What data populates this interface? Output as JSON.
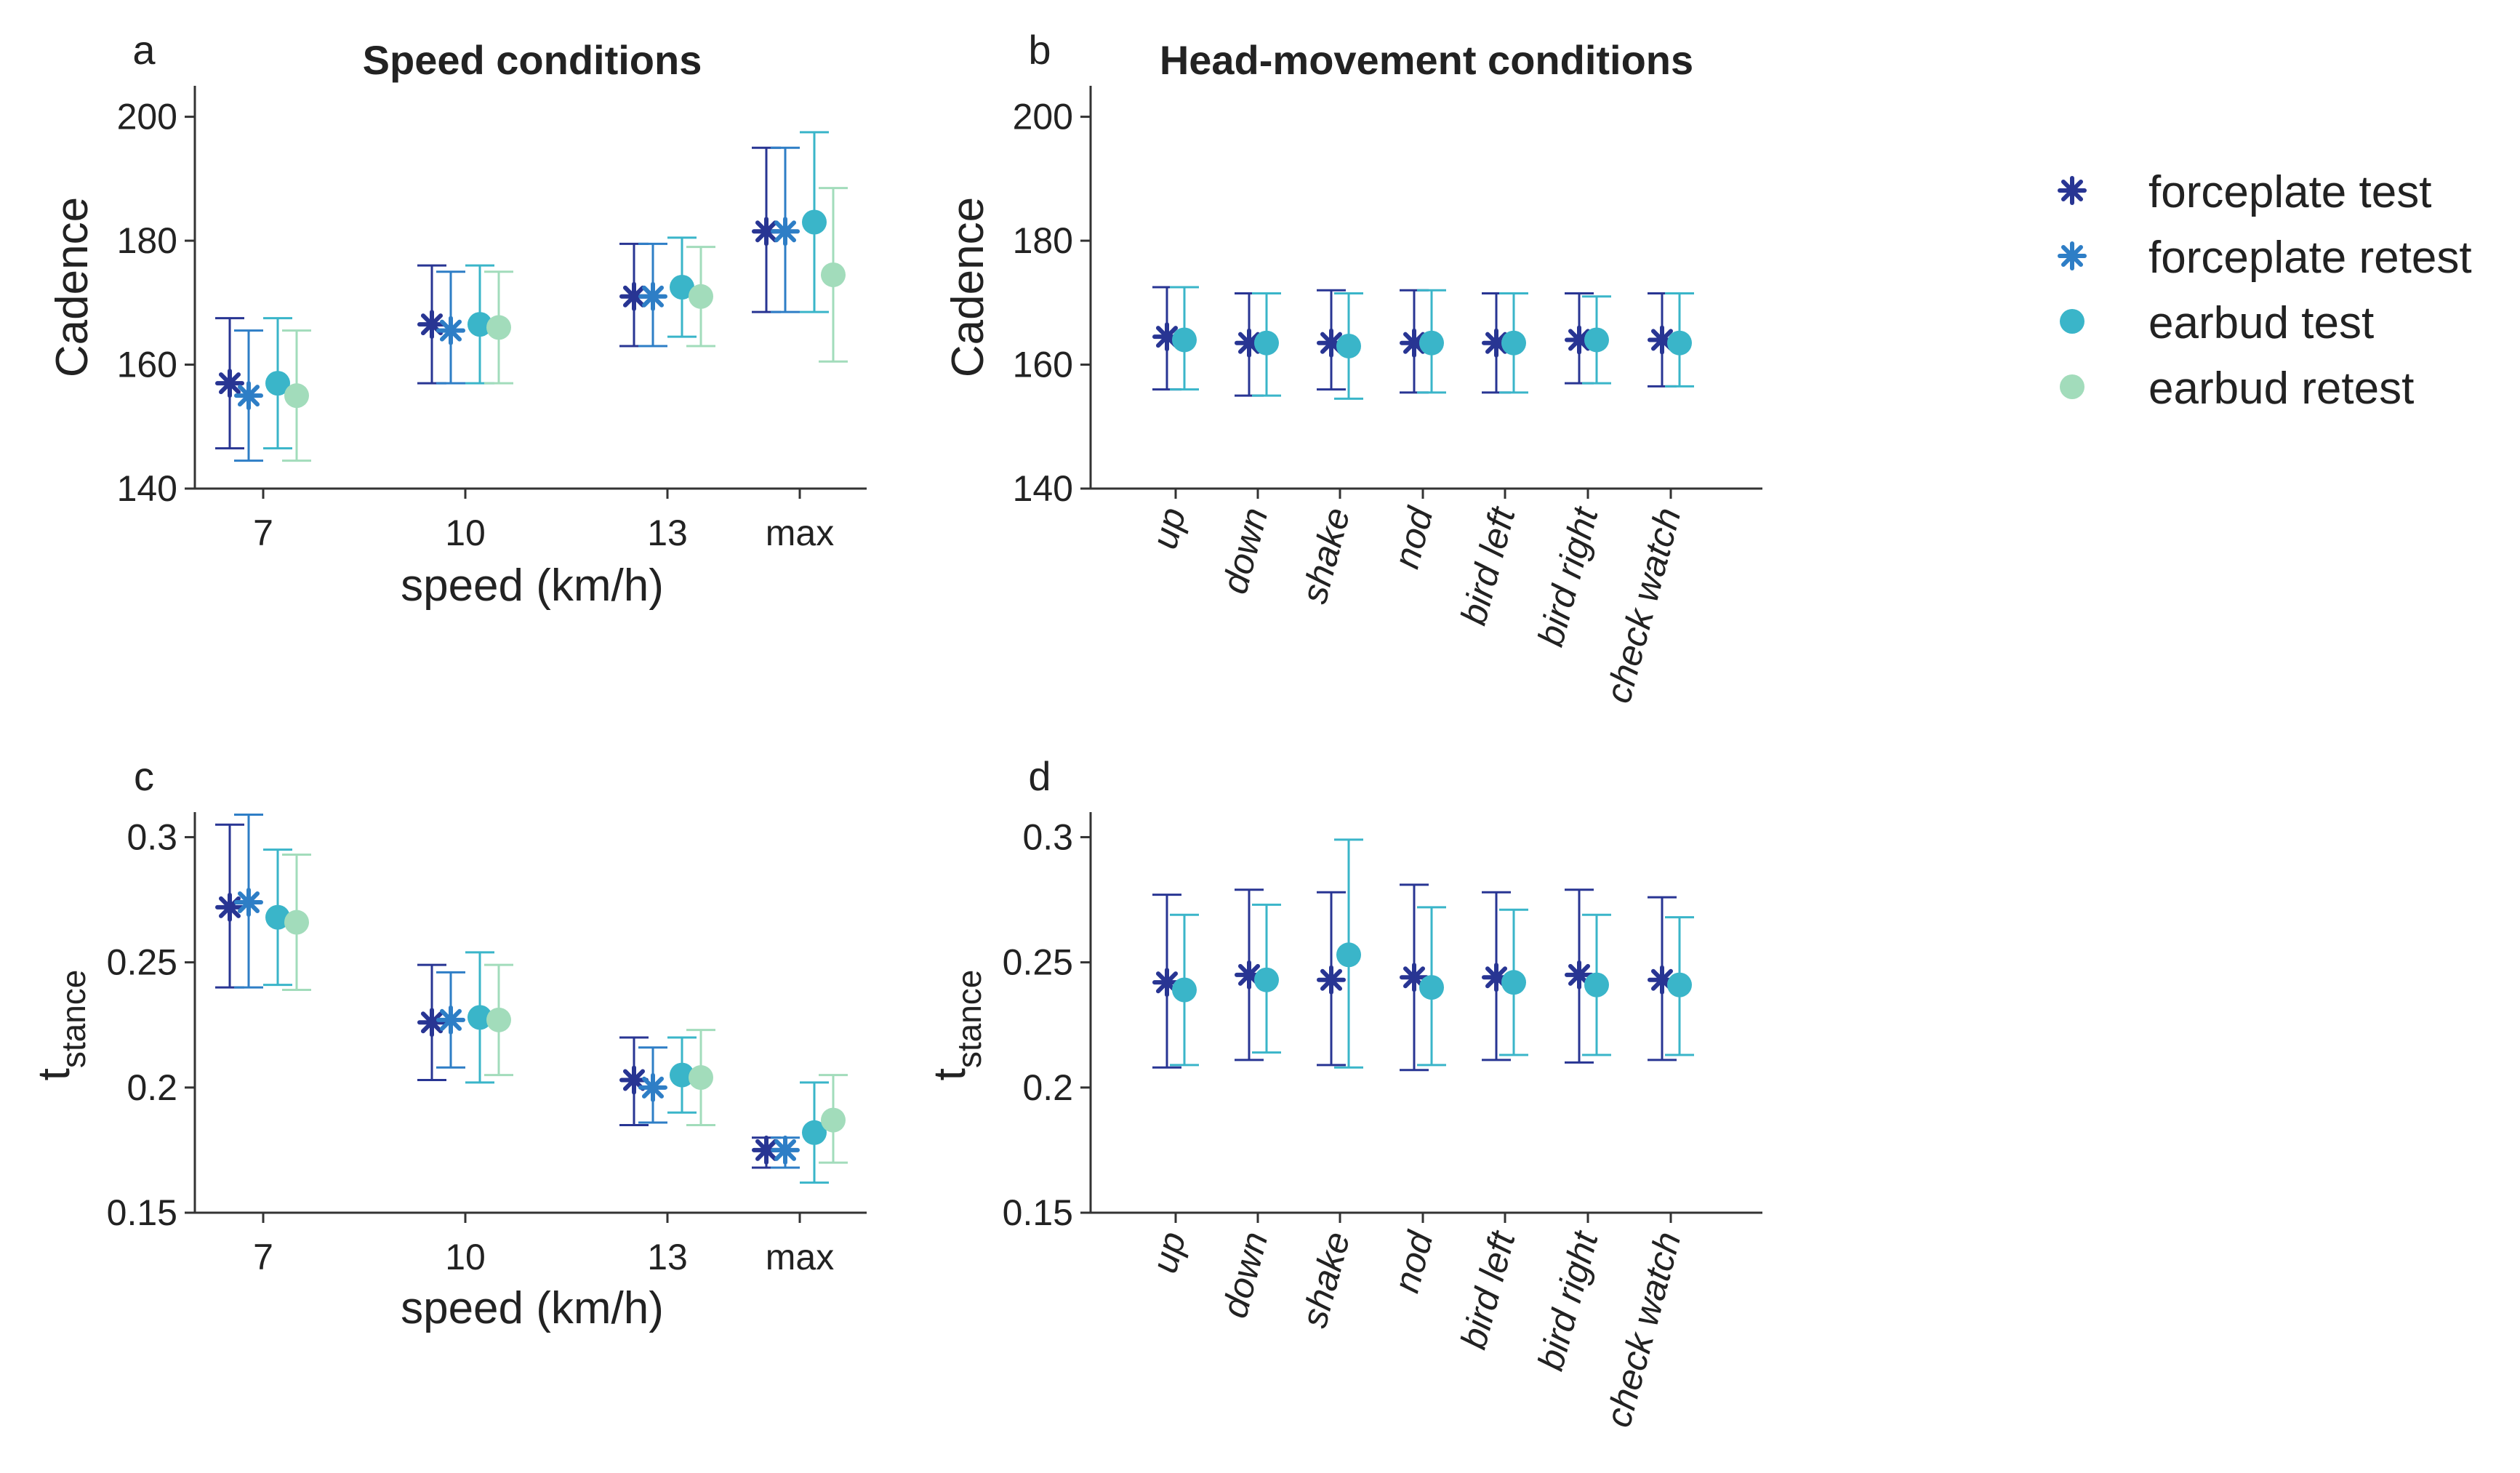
{
  "colors": {
    "forceplate_test": "#283593",
    "forceplate_retest": "#2e7ec6",
    "earbud_test": "#3ab5c9",
    "earbud_retest": "#a2dcbb",
    "axis": "#333333",
    "text": "#222222"
  },
  "legend": {
    "entries": [
      {
        "label": "forceplate test",
        "marker": "asterisk",
        "color_key": "forceplate_test"
      },
      {
        "label": "forceplate retest",
        "marker": "asterisk",
        "color_key": "forceplate_retest"
      },
      {
        "label": "earbud test",
        "marker": "circle",
        "color_key": "earbud_test"
      },
      {
        "label": "earbud retest",
        "marker": "circle",
        "color_key": "earbud_retest"
      }
    ]
  },
  "chart_data": [
    {
      "panel": "a",
      "type": "scatter",
      "title": "Speed conditions",
      "xlabel": "speed (km/h)",
      "ylabel": "Cadence",
      "categories": [
        "7",
        "10",
        "13",
        "max"
      ],
      "ylim": [
        140,
        205
      ],
      "yticks": [
        140,
        160,
        180,
        200
      ],
      "ytick_labels": [
        "140",
        "160",
        "180",
        "200"
      ],
      "series": [
        {
          "name": "forceplate test",
          "values": [
            157,
            166.5,
            171,
            181.5
          ],
          "lower": [
            146.5,
            157,
            163,
            168.5
          ],
          "upper": [
            167.5,
            176,
            179.5,
            195
          ]
        },
        {
          "name": "forceplate retest",
          "values": [
            155,
            165.5,
            171,
            181.5
          ],
          "lower": [
            144.5,
            157,
            163,
            168.5
          ],
          "upper": [
            165.5,
            175,
            179.5,
            195
          ]
        },
        {
          "name": "earbud test",
          "values": [
            157,
            166.5,
            172.5,
            183
          ],
          "lower": [
            146.5,
            157,
            164.5,
            168.5
          ],
          "upper": [
            167.5,
            176,
            180.5,
            197.5
          ]
        },
        {
          "name": "earbud retest",
          "values": [
            155,
            166,
            171,
            174.5
          ],
          "lower": [
            144.5,
            157,
            163,
            160.5
          ],
          "upper": [
            165.5,
            175,
            179,
            188.5
          ]
        }
      ]
    },
    {
      "panel": "b",
      "type": "scatter",
      "title": "Head-movement conditions",
      "xlabel": "",
      "ylabel": "Cadence",
      "categories": [
        "up",
        "down",
        "shake",
        "nod",
        "bird left",
        "bird right",
        "check watch"
      ],
      "ylim": [
        140,
        205
      ],
      "yticks": [
        140,
        160,
        180,
        200
      ],
      "ytick_labels": [
        "140",
        "160",
        "180",
        "200"
      ],
      "series": [
        {
          "name": "forceplate test",
          "values": [
            164.5,
            163.5,
            163.5,
            163.5,
            163.5,
            164,
            164
          ],
          "lower": [
            156,
            155,
            156,
            155.5,
            155.5,
            157,
            156.5
          ],
          "upper": [
            172.5,
            171.5,
            172,
            172,
            171.5,
            171.5,
            171.5
          ]
        },
        {
          "name": "earbud test",
          "values": [
            164,
            163.5,
            163,
            163.5,
            163.5,
            164,
            163.5
          ],
          "lower": [
            156,
            155,
            154.5,
            155.5,
            155.5,
            157,
            156.5
          ],
          "upper": [
            172.5,
            171.5,
            171.5,
            172,
            171.5,
            171,
            171.5
          ]
        }
      ]
    },
    {
      "panel": "c",
      "type": "scatter",
      "title": "",
      "xlabel": "speed (km/h)",
      "ylabel_main": "t",
      "ylabel_sub": "stance",
      "categories": [
        "7",
        "10",
        "13",
        "max"
      ],
      "ylim": [
        0.15,
        0.31
      ],
      "yticks": [
        0.15,
        0.2,
        0.25,
        0.3
      ],
      "ytick_labels": [
        "0.15",
        "0.2",
        "0.25",
        "0.3"
      ],
      "series": [
        {
          "name": "forceplate test",
          "values": [
            0.272,
            0.226,
            0.203,
            0.175
          ],
          "lower": [
            0.24,
            0.203,
            0.185,
            0.168
          ],
          "upper": [
            0.305,
            0.249,
            0.22,
            0.18
          ]
        },
        {
          "name": "forceplate retest",
          "values": [
            0.274,
            0.227,
            0.2,
            0.175
          ],
          "lower": [
            0.24,
            0.208,
            0.186,
            0.168
          ],
          "upper": [
            0.309,
            0.246,
            0.216,
            0.18
          ]
        },
        {
          "name": "earbud test",
          "values": [
            0.268,
            0.228,
            0.205,
            0.182
          ],
          "lower": [
            0.241,
            0.202,
            0.19,
            0.162
          ],
          "upper": [
            0.295,
            0.254,
            0.22,
            0.202
          ]
        },
        {
          "name": "earbud retest",
          "values": [
            0.266,
            0.227,
            0.204,
            0.187
          ],
          "lower": [
            0.239,
            0.205,
            0.185,
            0.17
          ],
          "upper": [
            0.293,
            0.249,
            0.223,
            0.205
          ]
        }
      ]
    },
    {
      "panel": "d",
      "type": "scatter",
      "title": "",
      "xlabel": "",
      "ylabel_main": "t",
      "ylabel_sub": "stance",
      "categories": [
        "up",
        "down",
        "shake",
        "nod",
        "bird left",
        "bird right",
        "check watch"
      ],
      "ylim": [
        0.15,
        0.31
      ],
      "yticks": [
        0.15,
        0.2,
        0.25,
        0.3
      ],
      "ytick_labels": [
        "0.15",
        "0.2",
        "0.25",
        "0.3"
      ],
      "series": [
        {
          "name": "forceplate test",
          "values": [
            0.242,
            0.245,
            0.243,
            0.244,
            0.244,
            0.245,
            0.243
          ],
          "lower": [
            0.208,
            0.211,
            0.209,
            0.207,
            0.211,
            0.21,
            0.211
          ],
          "upper": [
            0.277,
            0.279,
            0.278,
            0.281,
            0.278,
            0.279,
            0.276
          ]
        },
        {
          "name": "earbud test",
          "values": [
            0.239,
            0.243,
            0.253,
            0.24,
            0.242,
            0.241,
            0.241
          ],
          "lower": [
            0.209,
            0.214,
            0.208,
            0.209,
            0.213,
            0.213,
            0.213
          ],
          "upper": [
            0.269,
            0.273,
            0.299,
            0.272,
            0.271,
            0.269,
            0.268
          ]
        }
      ]
    }
  ]
}
